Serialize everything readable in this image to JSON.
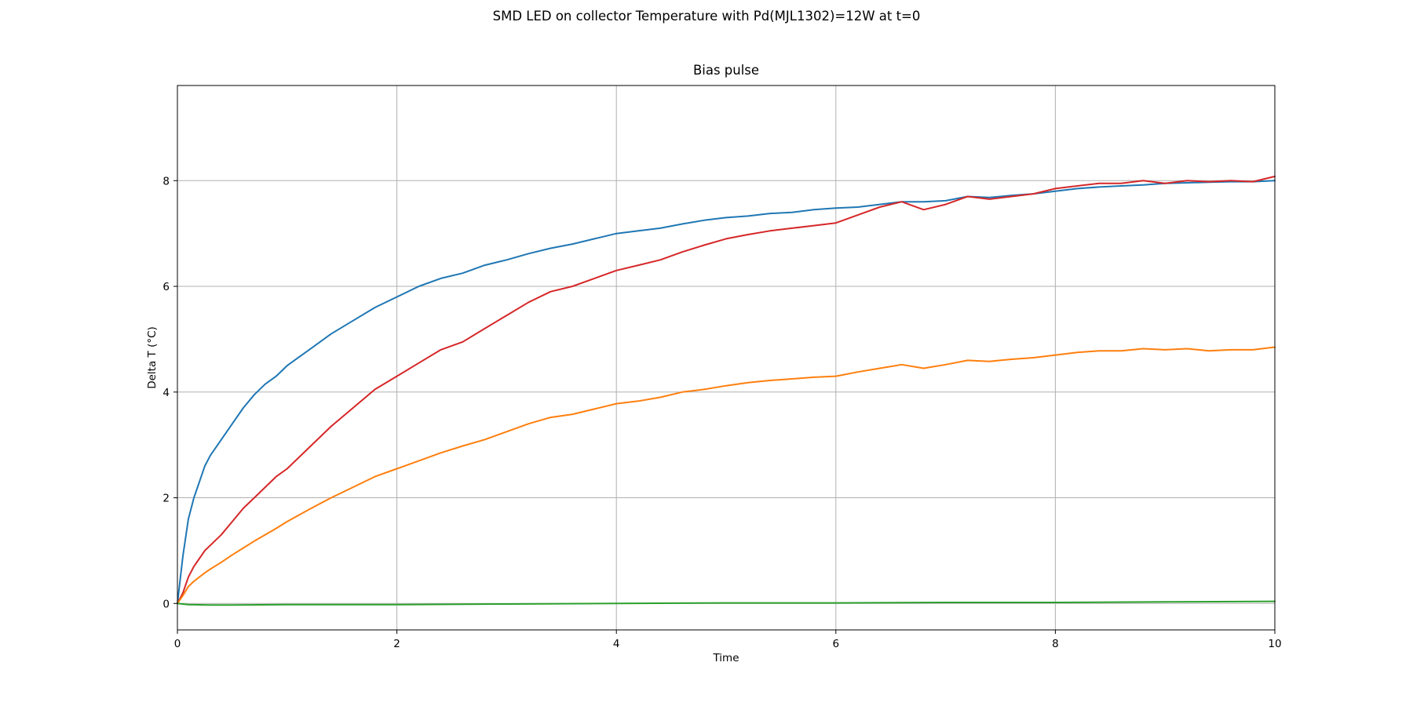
{
  "figure": {
    "suptitle": "SMD LED on collector Temperature with Pd(MJL1302)=12W at t=0"
  },
  "chart_data": {
    "type": "line",
    "title": "Bias pulse",
    "xlabel": "Time",
    "ylabel": "Delta T (°C)",
    "xlim": [
      0,
      10
    ],
    "ylim": [
      -0.5,
      9.8
    ],
    "xticks": [
      0,
      2,
      4,
      6,
      8,
      10
    ],
    "yticks": [
      0,
      2,
      4,
      6,
      8
    ],
    "grid": true,
    "series": [
      {
        "color": "#1f77b4",
        "x": [
          0,
          0.05,
          0.1,
          0.15,
          0.2,
          0.25,
          0.3,
          0.4,
          0.5,
          0.6,
          0.7,
          0.8,
          0.9,
          1.0,
          1.2,
          1.4,
          1.6,
          1.8,
          2.0,
          2.2,
          2.4,
          2.6,
          2.8,
          3.0,
          3.2,
          3.4,
          3.6,
          3.8,
          4.0,
          4.2,
          4.4,
          4.6,
          4.8,
          5.0,
          5.2,
          5.4,
          5.6,
          5.8,
          6.0,
          6.2,
          6.4,
          6.6,
          6.8,
          7.0,
          7.2,
          7.4,
          7.6,
          7.8,
          8.0,
          8.2,
          8.4,
          8.6,
          8.8,
          9.0,
          9.2,
          9.4,
          9.6,
          9.8,
          10.0
        ],
        "y": [
          0,
          0.9,
          1.6,
          2.0,
          2.3,
          2.6,
          2.8,
          3.1,
          3.4,
          3.7,
          3.95,
          4.15,
          4.3,
          4.5,
          4.8,
          5.1,
          5.35,
          5.6,
          5.8,
          6.0,
          6.15,
          6.25,
          6.4,
          6.5,
          6.62,
          6.72,
          6.8,
          6.9,
          7.0,
          7.05,
          7.1,
          7.18,
          7.25,
          7.3,
          7.33,
          7.38,
          7.4,
          7.45,
          7.48,
          7.5,
          7.55,
          7.6,
          7.6,
          7.62,
          7.7,
          7.68,
          7.72,
          7.75,
          7.8,
          7.85,
          7.88,
          7.9,
          7.92,
          7.95,
          7.96,
          7.97,
          7.98,
          7.98,
          8.0
        ]
      },
      {
        "color": "#d62728",
        "x": [
          0,
          0.05,
          0.1,
          0.15,
          0.2,
          0.25,
          0.3,
          0.4,
          0.5,
          0.6,
          0.7,
          0.8,
          0.9,
          1.0,
          1.2,
          1.4,
          1.6,
          1.8,
          2.0,
          2.2,
          2.4,
          2.6,
          2.8,
          3.0,
          3.2,
          3.4,
          3.6,
          3.8,
          4.0,
          4.2,
          4.4,
          4.6,
          4.8,
          5.0,
          5.2,
          5.4,
          5.6,
          5.8,
          6.0,
          6.2,
          6.4,
          6.6,
          6.8,
          7.0,
          7.2,
          7.4,
          7.6,
          7.8,
          8.0,
          8.2,
          8.4,
          8.6,
          8.8,
          9.0,
          9.2,
          9.4,
          9.6,
          9.8,
          10.0
        ],
        "y": [
          0,
          0.2,
          0.5,
          0.7,
          0.85,
          1.0,
          1.1,
          1.3,
          1.55,
          1.8,
          2.0,
          2.2,
          2.4,
          2.55,
          2.95,
          3.35,
          3.7,
          4.05,
          4.3,
          4.55,
          4.8,
          4.95,
          5.2,
          5.45,
          5.7,
          5.9,
          6.0,
          6.15,
          6.3,
          6.4,
          6.5,
          6.65,
          6.78,
          6.9,
          6.98,
          7.05,
          7.1,
          7.15,
          7.2,
          7.35,
          7.5,
          7.6,
          7.45,
          7.55,
          7.7,
          7.65,
          7.7,
          7.75,
          7.85,
          7.9,
          7.95,
          7.95,
          8.0,
          7.95,
          8.0,
          7.98,
          8.0,
          7.98,
          8.08
        ]
      },
      {
        "color": "#ff7f0e",
        "x": [
          0,
          0.05,
          0.1,
          0.15,
          0.2,
          0.25,
          0.3,
          0.4,
          0.5,
          0.6,
          0.7,
          0.8,
          0.9,
          1.0,
          1.2,
          1.4,
          1.6,
          1.8,
          2.0,
          2.2,
          2.4,
          2.6,
          2.8,
          3.0,
          3.2,
          3.4,
          3.6,
          3.8,
          4.0,
          4.2,
          4.4,
          4.6,
          4.8,
          5.0,
          5.2,
          5.4,
          5.6,
          5.8,
          6.0,
          6.2,
          6.4,
          6.6,
          6.8,
          7.0,
          7.2,
          7.4,
          7.6,
          7.8,
          8.0,
          8.2,
          8.4,
          8.6,
          8.8,
          9.0,
          9.2,
          9.4,
          9.6,
          9.8,
          10.0
        ],
        "y": [
          0,
          0.15,
          0.32,
          0.42,
          0.5,
          0.58,
          0.65,
          0.78,
          0.92,
          1.05,
          1.18,
          1.3,
          1.42,
          1.55,
          1.78,
          2.0,
          2.2,
          2.4,
          2.55,
          2.7,
          2.85,
          2.98,
          3.1,
          3.25,
          3.4,
          3.52,
          3.58,
          3.68,
          3.78,
          3.83,
          3.9,
          4.0,
          4.05,
          4.12,
          4.18,
          4.22,
          4.25,
          4.28,
          4.3,
          4.38,
          4.45,
          4.52,
          4.45,
          4.52,
          4.6,
          4.58,
          4.62,
          4.65,
          4.7,
          4.75,
          4.78,
          4.78,
          4.82,
          4.8,
          4.82,
          4.78,
          4.8,
          4.8,
          4.85
        ]
      },
      {
        "color": "#2ca02c",
        "x": [
          0,
          0.1,
          0.3,
          0.5,
          1.0,
          1.5,
          2.0,
          3.0,
          4.0,
          5.0,
          6.0,
          7.0,
          8.0,
          9.0,
          10.0
        ],
        "y": [
          0,
          -0.02,
          -0.03,
          -0.03,
          -0.02,
          -0.02,
          -0.02,
          -0.01,
          0.0,
          0.01,
          0.01,
          0.02,
          0.02,
          0.03,
          0.04
        ]
      }
    ]
  }
}
